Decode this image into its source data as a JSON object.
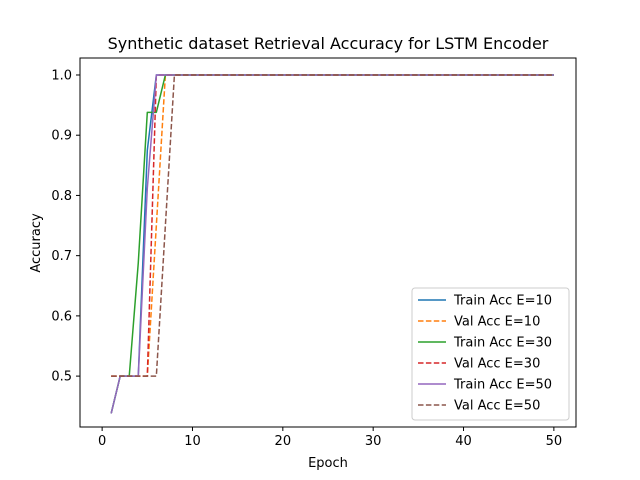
{
  "chart_data": {
    "type": "line",
    "title": "Synthetic dataset Retrieval Accuracy for LSTM Encoder",
    "xlabel": "Epoch",
    "ylabel": "Accuracy",
    "xlim": [
      -2.45,
      52.45
    ],
    "ylim": [
      0.4155,
      1.0282
    ],
    "xticks": [
      0,
      10,
      20,
      30,
      40,
      50
    ],
    "yticks": [
      0.5,
      0.6,
      0.7,
      0.8,
      0.9,
      1.0
    ],
    "ytick_labels": [
      "0.5",
      "0.6",
      "0.7",
      "0.8",
      "0.9",
      "1.0"
    ],
    "grid": false,
    "legend_position": "lower right",
    "series": [
      {
        "name": "Train Acc E=10",
        "color": "#1f77b4",
        "dash": "solid",
        "x": [
          1,
          2,
          3,
          4,
          5,
          6,
          7,
          8,
          9,
          10,
          11,
          12,
          13,
          14,
          15,
          16,
          17,
          18,
          19,
          20,
          21,
          22,
          23,
          24,
          25,
          26,
          27,
          28,
          29,
          30,
          31,
          32,
          33,
          34,
          35,
          36,
          37,
          38,
          39,
          40,
          41,
          42,
          43,
          44,
          45,
          46,
          47,
          48,
          49,
          50
        ],
        "y": [
          0.438,
          0.5,
          0.5,
          0.5,
          0.875,
          1.0,
          1.0,
          1.0,
          1.0,
          1.0,
          1.0,
          1.0,
          1.0,
          1.0,
          1.0,
          1.0,
          1.0,
          1.0,
          1.0,
          1.0,
          1.0,
          1.0,
          1.0,
          1.0,
          1.0,
          1.0,
          1.0,
          1.0,
          1.0,
          1.0,
          1.0,
          1.0,
          1.0,
          1.0,
          1.0,
          1.0,
          1.0,
          1.0,
          1.0,
          1.0,
          1.0,
          1.0,
          1.0,
          1.0,
          1.0,
          1.0,
          1.0,
          1.0,
          1.0,
          1.0
        ]
      },
      {
        "name": "Val Acc E=10",
        "color": "#ff7f0e",
        "dash": "dashed",
        "x": [
          1,
          2,
          3,
          4,
          5,
          6,
          7,
          8,
          9,
          10,
          11,
          12,
          13,
          14,
          15,
          16,
          17,
          18,
          19,
          20,
          21,
          22,
          23,
          24,
          25,
          26,
          27,
          28,
          29,
          30,
          31,
          32,
          33,
          34,
          35,
          36,
          37,
          38,
          39,
          40,
          41,
          42,
          43,
          44,
          45,
          46,
          47,
          48,
          49,
          50
        ],
        "y": [
          0.5,
          0.5,
          0.5,
          0.5,
          0.5,
          0.75,
          1.0,
          1.0,
          1.0,
          1.0,
          1.0,
          1.0,
          1.0,
          1.0,
          1.0,
          1.0,
          1.0,
          1.0,
          1.0,
          1.0,
          1.0,
          1.0,
          1.0,
          1.0,
          1.0,
          1.0,
          1.0,
          1.0,
          1.0,
          1.0,
          1.0,
          1.0,
          1.0,
          1.0,
          1.0,
          1.0,
          1.0,
          1.0,
          1.0,
          1.0,
          1.0,
          1.0,
          1.0,
          1.0,
          1.0,
          1.0,
          1.0,
          1.0,
          1.0,
          1.0
        ]
      },
      {
        "name": "Train Acc E=30",
        "color": "#2ca02c",
        "dash": "solid",
        "x": [
          1,
          2,
          3,
          4,
          5,
          6,
          7,
          8,
          9,
          10,
          11,
          12,
          13,
          14,
          15,
          16,
          17,
          18,
          19,
          20,
          21,
          22,
          23,
          24,
          25,
          26,
          27,
          28,
          29,
          30,
          31,
          32,
          33,
          34,
          35,
          36,
          37,
          38,
          39,
          40,
          41,
          42,
          43,
          44,
          45,
          46,
          47,
          48,
          49,
          50
        ],
        "y": [
          0.438,
          0.5,
          0.5,
          0.688,
          0.938,
          0.938,
          1.0,
          1.0,
          1.0,
          1.0,
          1.0,
          1.0,
          1.0,
          1.0,
          1.0,
          1.0,
          1.0,
          1.0,
          1.0,
          1.0,
          1.0,
          1.0,
          1.0,
          1.0,
          1.0,
          1.0,
          1.0,
          1.0,
          1.0,
          1.0,
          1.0,
          1.0,
          1.0,
          1.0,
          1.0,
          1.0,
          1.0,
          1.0,
          1.0,
          1.0,
          1.0,
          1.0,
          1.0,
          1.0,
          1.0,
          1.0,
          1.0,
          1.0,
          1.0,
          1.0
        ]
      },
      {
        "name": "Val Acc E=30",
        "color": "#d62728",
        "dash": "dashed",
        "x": [
          1,
          2,
          3,
          4,
          5,
          6,
          7,
          8,
          9,
          10,
          11,
          12,
          13,
          14,
          15,
          16,
          17,
          18,
          19,
          20,
          21,
          22,
          23,
          24,
          25,
          26,
          27,
          28,
          29,
          30,
          31,
          32,
          33,
          34,
          35,
          36,
          37,
          38,
          39,
          40,
          41,
          42,
          43,
          44,
          45,
          46,
          47,
          48,
          49,
          50
        ],
        "y": [
          0.5,
          0.5,
          0.5,
          0.5,
          0.5,
          1.0,
          1.0,
          1.0,
          1.0,
          1.0,
          1.0,
          1.0,
          1.0,
          1.0,
          1.0,
          1.0,
          1.0,
          1.0,
          1.0,
          1.0,
          1.0,
          1.0,
          1.0,
          1.0,
          1.0,
          1.0,
          1.0,
          1.0,
          1.0,
          1.0,
          1.0,
          1.0,
          1.0,
          1.0,
          1.0,
          1.0,
          1.0,
          1.0,
          1.0,
          1.0,
          1.0,
          1.0,
          1.0,
          1.0,
          1.0,
          1.0,
          1.0,
          1.0,
          1.0,
          1.0
        ]
      },
      {
        "name": "Train Acc E=50",
        "color": "#9467bd",
        "dash": "solid",
        "x": [
          1,
          2,
          3,
          4,
          5,
          6,
          7,
          8,
          9,
          10,
          11,
          12,
          13,
          14,
          15,
          16,
          17,
          18,
          19,
          20,
          21,
          22,
          23,
          24,
          25,
          26,
          27,
          28,
          29,
          30,
          31,
          32,
          33,
          34,
          35,
          36,
          37,
          38,
          39,
          40,
          41,
          42,
          43,
          44,
          45,
          46,
          47,
          48,
          49,
          50
        ],
        "y": [
          0.438,
          0.5,
          0.5,
          0.5,
          0.812,
          1.0,
          1.0,
          1.0,
          1.0,
          1.0,
          1.0,
          1.0,
          1.0,
          1.0,
          1.0,
          1.0,
          1.0,
          1.0,
          1.0,
          1.0,
          1.0,
          1.0,
          1.0,
          1.0,
          1.0,
          1.0,
          1.0,
          1.0,
          1.0,
          1.0,
          1.0,
          1.0,
          1.0,
          1.0,
          1.0,
          1.0,
          1.0,
          1.0,
          1.0,
          1.0,
          1.0,
          1.0,
          1.0,
          1.0,
          1.0,
          1.0,
          1.0,
          1.0,
          1.0,
          1.0
        ]
      },
      {
        "name": "Val Acc E=50",
        "color": "#8c564b",
        "dash": "dashed",
        "x": [
          1,
          2,
          3,
          4,
          5,
          6,
          7,
          8,
          9,
          10,
          11,
          12,
          13,
          14,
          15,
          16,
          17,
          18,
          19,
          20,
          21,
          22,
          23,
          24,
          25,
          26,
          27,
          28,
          29,
          30,
          31,
          32,
          33,
          34,
          35,
          36,
          37,
          38,
          39,
          40,
          41,
          42,
          43,
          44,
          45,
          46,
          47,
          48,
          49,
          50
        ],
        "y": [
          0.5,
          0.5,
          0.5,
          0.5,
          0.5,
          0.5,
          0.75,
          1.0,
          1.0,
          1.0,
          1.0,
          1.0,
          1.0,
          1.0,
          1.0,
          1.0,
          1.0,
          1.0,
          1.0,
          1.0,
          1.0,
          1.0,
          1.0,
          1.0,
          1.0,
          1.0,
          1.0,
          1.0,
          1.0,
          1.0,
          1.0,
          1.0,
          1.0,
          1.0,
          1.0,
          1.0,
          1.0,
          1.0,
          1.0,
          1.0,
          1.0,
          1.0,
          1.0,
          1.0,
          1.0,
          1.0,
          1.0,
          1.0,
          1.0,
          1.0
        ]
      }
    ]
  }
}
